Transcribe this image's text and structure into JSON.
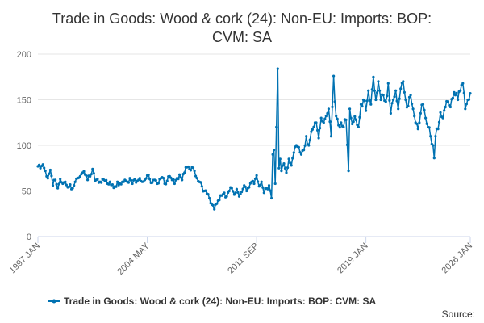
{
  "chart_data": {
    "type": "line",
    "title": "Trade in Goods: Wood & cork (24): Non-EU: Imports: BOP: CVM: SA",
    "title_lines": [
      "Trade in Goods: Wood & cork (24): Non-EU: Imports: BOP:",
      "CVM: SA"
    ],
    "xlabel": "",
    "ylabel": "",
    "x_tick_labels": [
      "1997 JAN",
      "2004 MAY",
      "2011 SEP",
      "2019 JAN",
      "2026 JAN"
    ],
    "x_tick_positions": [
      0,
      88,
      176,
      264,
      348
    ],
    "xlim": [
      0,
      348
    ],
    "ylim": [
      0,
      200
    ],
    "y_ticks": [
      0,
      50,
      100,
      150,
      200
    ],
    "grid": true,
    "legend_position": "bottom",
    "credit": "Source:",
    "colors": {
      "series": "#0072b2",
      "grid": "#e6e6e6",
      "axis": "#ccd6eb"
    },
    "series": [
      {
        "name": "Trade in Goods: Wood & cork (24): Non-EU: Imports: BOP: CVM: SA",
        "anchors": [
          [
            0,
            77
          ],
          [
            2,
            75
          ],
          [
            4,
            79
          ],
          [
            6,
            72
          ],
          [
            8,
            64
          ],
          [
            10,
            73
          ],
          [
            12,
            56
          ],
          [
            14,
            62
          ],
          [
            16,
            53
          ],
          [
            18,
            63
          ],
          [
            20,
            58
          ],
          [
            22,
            60
          ],
          [
            24,
            54
          ],
          [
            26,
            57
          ],
          [
            28,
            53
          ],
          [
            30,
            60
          ],
          [
            32,
            64
          ],
          [
            34,
            66
          ],
          [
            36,
            70
          ],
          [
            38,
            68
          ],
          [
            40,
            62
          ],
          [
            42,
            66
          ],
          [
            44,
            74
          ],
          [
            46,
            61
          ],
          [
            48,
            63
          ],
          [
            50,
            60
          ],
          [
            52,
            63
          ],
          [
            54,
            61
          ],
          [
            56,
            58
          ],
          [
            58,
            60
          ],
          [
            60,
            57
          ],
          [
            62,
            55
          ],
          [
            64,
            60
          ],
          [
            66,
            58
          ],
          [
            68,
            60
          ],
          [
            70,
            62
          ],
          [
            72,
            60
          ],
          [
            74,
            64
          ],
          [
            76,
            58
          ],
          [
            78,
            63
          ],
          [
            80,
            61
          ],
          [
            82,
            64
          ],
          [
            84,
            60
          ],
          [
            86,
            62
          ],
          [
            88,
            67
          ],
          [
            90,
            63
          ],
          [
            92,
            59
          ],
          [
            94,
            62
          ],
          [
            96,
            58
          ],
          [
            98,
            63
          ],
          [
            100,
            65
          ],
          [
            102,
            58
          ],
          [
            104,
            61
          ],
          [
            106,
            66
          ],
          [
            108,
            62
          ],
          [
            110,
            58
          ],
          [
            112,
            64
          ],
          [
            114,
            68
          ],
          [
            116,
            62
          ],
          [
            118,
            70
          ],
          [
            120,
            76
          ],
          [
            122,
            74
          ],
          [
            124,
            76
          ],
          [
            126,
            72
          ],
          [
            128,
            64
          ],
          [
            130,
            60
          ],
          [
            132,
            55
          ],
          [
            134,
            50
          ],
          [
            136,
            47
          ],
          [
            138,
            42
          ],
          [
            140,
            35
          ],
          [
            142,
            30
          ],
          [
            144,
            36
          ],
          [
            146,
            40
          ],
          [
            148,
            45
          ],
          [
            150,
            48
          ],
          [
            152,
            44
          ],
          [
            154,
            50
          ],
          [
            156,
            53
          ],
          [
            158,
            46
          ],
          [
            160,
            52
          ],
          [
            162,
            44
          ],
          [
            164,
            49
          ],
          [
            166,
            56
          ],
          [
            168,
            50
          ],
          [
            170,
            54
          ],
          [
            172,
            60
          ],
          [
            174,
            58
          ],
          [
            176,
            67
          ],
          [
            178,
            55
          ],
          [
            180,
            60
          ],
          [
            182,
            48
          ],
          [
            184,
            53
          ],
          [
            186,
            56
          ],
          [
            188,
            42
          ],
          [
            189,
            90
          ],
          [
            190,
            95
          ],
          [
            191,
            58
          ],
          [
            192,
            120
          ],
          [
            193,
            184
          ],
          [
            194,
            75
          ],
          [
            195,
            85
          ],
          [
            196,
            72
          ],
          [
            198,
            80
          ],
          [
            200,
            70
          ],
          [
            202,
            85
          ],
          [
            204,
            78
          ],
          [
            206,
            92
          ],
          [
            208,
            100
          ],
          [
            210,
            98
          ],
          [
            212,
            90
          ],
          [
            214,
            95
          ],
          [
            216,
            110
          ],
          [
            218,
            100
          ],
          [
            220,
            115
          ],
          [
            222,
            120
          ],
          [
            224,
            125
          ],
          [
            226,
            108
          ],
          [
            228,
            130
          ],
          [
            230,
            125
          ],
          [
            232,
            132
          ],
          [
            234,
            140
          ],
          [
            236,
            110
          ],
          [
            238,
            176
          ],
          [
            239,
            148
          ],
          [
            240,
            132
          ],
          [
            242,
            122
          ],
          [
            244,
            125
          ],
          [
            246,
            120
          ],
          [
            248,
            128
          ],
          [
            250,
            72
          ],
          [
            251,
            140
          ],
          [
            252,
            130
          ],
          [
            254,
            126
          ],
          [
            256,
            128
          ],
          [
            258,
            120
          ],
          [
            260,
            145
          ],
          [
            262,
            150
          ],
          [
            264,
            138
          ],
          [
            266,
            160
          ],
          [
            268,
            145
          ],
          [
            270,
            175
          ],
          [
            272,
            150
          ],
          [
            274,
            170
          ],
          [
            276,
            150
          ],
          [
            278,
            155
          ],
          [
            280,
            148
          ],
          [
            282,
            168
          ],
          [
            284,
            135
          ],
          [
            286,
            150
          ],
          [
            288,
            160
          ],
          [
            290,
            140
          ],
          [
            292,
            162
          ],
          [
            294,
            170
          ],
          [
            296,
            150
          ],
          [
            298,
            143
          ],
          [
            300,
            155
          ],
          [
            302,
            140
          ],
          [
            304,
            125
          ],
          [
            306,
            118
          ],
          [
            308,
            135
          ],
          [
            310,
            145
          ],
          [
            312,
            130
          ],
          [
            314,
            120
          ],
          [
            316,
            110
          ],
          [
            318,
            100
          ],
          [
            319,
            86
          ],
          [
            320,
            110
          ],
          [
            322,
            118
          ],
          [
            324,
            136
          ],
          [
            326,
            130
          ],
          [
            328,
            142
          ],
          [
            330,
            148
          ],
          [
            332,
            142
          ],
          [
            334,
            152
          ],
          [
            336,
            155
          ],
          [
            338,
            150
          ],
          [
            340,
            160
          ],
          [
            342,
            168
          ],
          [
            344,
            140
          ],
          [
            346,
            150
          ],
          [
            348,
            157
          ]
        ]
      }
    ]
  }
}
